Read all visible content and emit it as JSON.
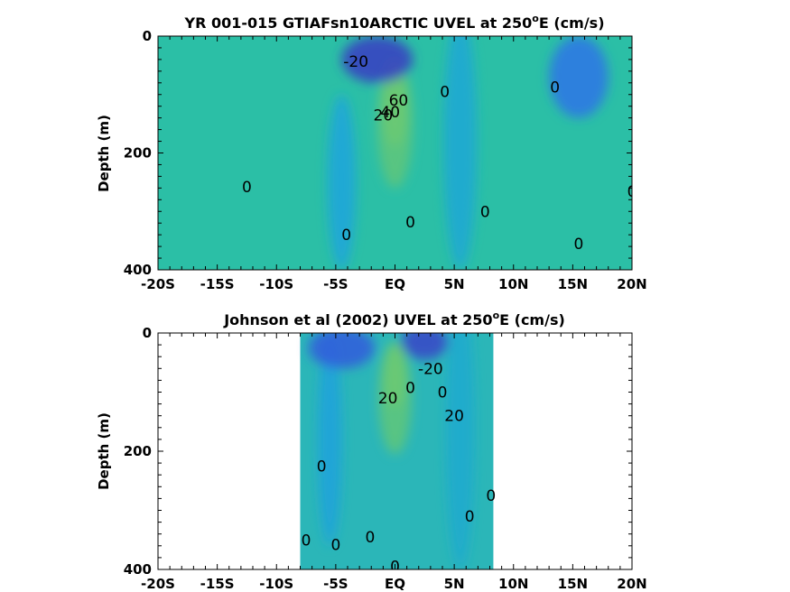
{
  "chart_data": [
    {
      "type": "heatmap",
      "subtype": "filled-contour",
      "title_main": "YR 001-015 GTIAFsn10ARCTIC UVEL at 250",
      "title_sup": "o",
      "title_tail": "E (cm/s)",
      "ylabel": "Depth (m)",
      "x_ticks": [
        "-20S",
        "-15S",
        "-10S",
        "-5S",
        "EQ",
        "5N",
        "10N",
        "15N",
        "20N"
      ],
      "xlim": [
        -20,
        20
      ],
      "y_ticks": [
        "0",
        "200",
        "400"
      ],
      "ylim": [
        0,
        400
      ],
      "y_reversed": true,
      "data_xrange": [
        -20,
        20
      ],
      "colormap": [
        "#3e26a8",
        "#2f6ee6",
        "#1ca6d9",
        "#2bbfa0",
        "#8dca5a",
        "#f5cf30",
        "#f9fb0e"
      ],
      "background_color": "#2bbfa6",
      "cores": [
        {
          "x": 0,
          "y": 115,
          "value": 80,
          "x_half_width": 1.1,
          "y_half_depth": 75
        },
        {
          "x": 0,
          "y": 150,
          "value": 40,
          "x_half_width": 1.5,
          "y_half_depth": 110
        },
        {
          "x": 5.5,
          "y": 180,
          "value": 12,
          "x_half_width": 1.4,
          "y_half_depth": 220
        },
        {
          "x": -4.5,
          "y": 250,
          "value": 10,
          "x_half_width": 1.2,
          "y_half_depth": 150
        },
        {
          "x": -1.5,
          "y": 40,
          "value": -22,
          "x_half_width": 3.0,
          "y_half_depth": 40
        },
        {
          "x": 15.5,
          "y": 70,
          "value": -6,
          "x_half_width": 2.5,
          "y_half_depth": 70
        }
      ],
      "contour_labels": [
        {
          "text": "-20",
          "x": -3.3,
          "y": 43
        },
        {
          "text": "0",
          "x": 4.2,
          "y": 95
        },
        {
          "text": "0",
          "x": 13.5,
          "y": 87
        },
        {
          "text": "0",
          "x": -12.5,
          "y": 258
        },
        {
          "text": "0",
          "x": -4.1,
          "y": 340
        },
        {
          "text": "0",
          "x": 1.3,
          "y": 318
        },
        {
          "text": "0",
          "x": 7.6,
          "y": 300
        },
        {
          "text": "0",
          "x": 15.5,
          "y": 355
        },
        {
          "text": "0",
          "x": 20,
          "y": 266
        },
        {
          "text": "20",
          "x": -1.0,
          "y": 135
        },
        {
          "text": "40",
          "x": -0.4,
          "y": 130
        },
        {
          "text": "60",
          "x": 0.3,
          "y": 110
        }
      ]
    },
    {
      "type": "heatmap",
      "subtype": "filled-contour",
      "title_main": "Johnson et al (2002) UVEL at 250",
      "title_sup": "o",
      "title_tail": "E (cm/s)",
      "ylabel": "Depth (m)",
      "x_ticks": [
        "-20S",
        "-15S",
        "-10S",
        "-5S",
        "EQ",
        "5N",
        "10N",
        "15N",
        "20N"
      ],
      "xlim": [
        -20,
        20
      ],
      "y_ticks": [
        "0",
        "200",
        "400"
      ],
      "ylim": [
        0,
        400
      ],
      "y_reversed": true,
      "data_xrange": [
        -8,
        8.3
      ],
      "colormap": [
        "#3e26a8",
        "#2f6ee6",
        "#1ca6d9",
        "#2bbfa0",
        "#8dca5a",
        "#f5cf30",
        "#f9fb0e"
      ],
      "background_color": "#2bb6b8",
      "cores": [
        {
          "x": 0,
          "y": 70,
          "value": 80,
          "x_half_width": 1.0,
          "y_half_depth": 55
        },
        {
          "x": 0,
          "y": 110,
          "value": 40,
          "x_half_width": 1.4,
          "y_half_depth": 95
        },
        {
          "x": 5.5,
          "y": 160,
          "value": 14,
          "x_half_width": 1.2,
          "y_half_depth": 240
        },
        {
          "x": -5.5,
          "y": 180,
          "value": 9,
          "x_half_width": 1.0,
          "y_half_depth": 180
        },
        {
          "x": -4.5,
          "y": 25,
          "value": -14,
          "x_half_width": 2.8,
          "y_half_depth": 35
        },
        {
          "x": 2.5,
          "y": 15,
          "value": -20,
          "x_half_width": 2.0,
          "y_half_depth": 30
        }
      ],
      "contour_labels": [
        {
          "text": "-20",
          "x": 3.0,
          "y": 60
        },
        {
          "text": "0",
          "x": 1.3,
          "y": 92
        },
        {
          "text": "0",
          "x": 4.0,
          "y": 100
        },
        {
          "text": "20",
          "x": 5.0,
          "y": 140
        },
        {
          "text": "20",
          "x": -0.6,
          "y": 110
        },
        {
          "text": "0",
          "x": -6.2,
          "y": 225
        },
        {
          "text": "0",
          "x": -7.5,
          "y": 350
        },
        {
          "text": "0",
          "x": -5.0,
          "y": 358
        },
        {
          "text": "0",
          "x": -2.1,
          "y": 345
        },
        {
          "text": "0",
          "x": 6.3,
          "y": 310
        },
        {
          "text": "0",
          "x": 8.1,
          "y": 275
        },
        {
          "text": "0",
          "x": 0,
          "y": 395
        }
      ]
    }
  ]
}
